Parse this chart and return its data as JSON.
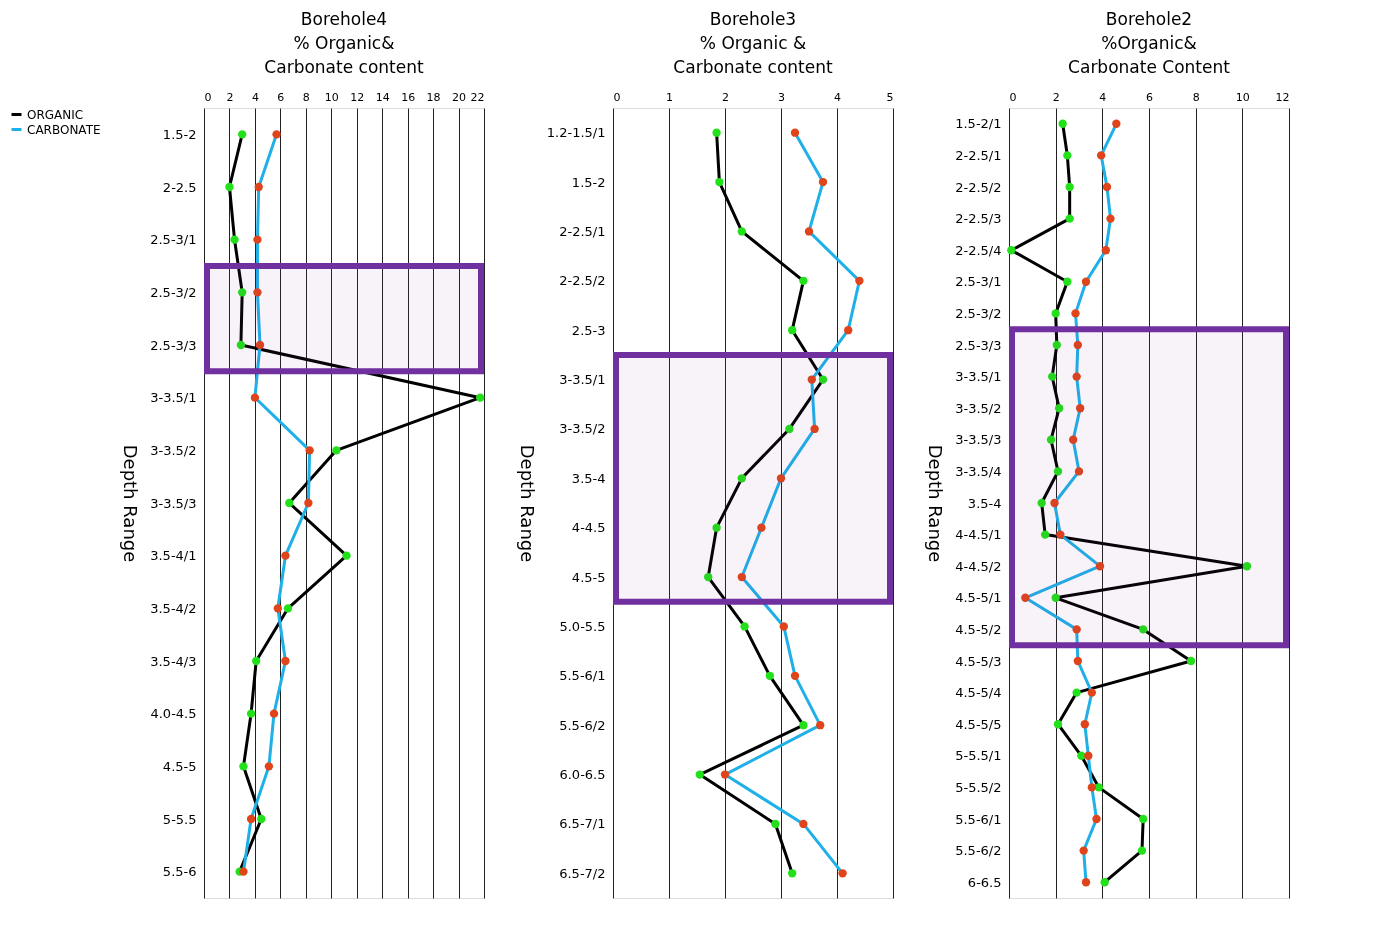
{
  "chart_data": [
    {
      "type": "line",
      "orientation": "horizontal",
      "title": "Borehole4\n% Organic&\nCarbonate content",
      "ylabel": "Depth Range",
      "categories": [
        "1.5-2",
        "2-2.5",
        "2.5-3/1",
        "2.5-3/2",
        "2.5-3/3",
        "3-3.5/1",
        "3-3.5/2",
        "3-3.5/3",
        "3.5-4/1",
        "3.5-4/2",
        "3.5-4/3",
        "4.0-4.5",
        "4.5-5",
        "5-5.5",
        "5.5-6"
      ],
      "series": [
        {
          "name": "ORGANIC",
          "color": "#000000",
          "colors": [
            "#22e01a",
            "#22e01a",
            "#22e01a",
            "#22e01a",
            "#22e01a",
            "#22e01a",
            "#22e01a",
            "#22e01a",
            "#22e01a",
            "#22e01a",
            "#22e01a",
            "#22e01a",
            "#22e01a",
            "#22e01a",
            "#22e01a"
          ],
          "values": [
            3.0,
            2.0,
            2.4,
            3.0,
            2.9,
            21.7,
            10.4,
            6.7,
            11.2,
            6.6,
            4.1,
            3.7,
            3.1,
            4.5,
            2.8
          ]
        },
        {
          "name": "CARBONATE",
          "color": "#1fb0e8",
          "colors": [
            "#e0441a",
            "#e0441a",
            "#e0441a",
            "#e0441a",
            "#e0441a",
            "#e0441a",
            "#e0441a",
            "#e0441a",
            "#e0441a",
            "#e0441a",
            "#e0441a",
            "#e0441a",
            "#e0441a",
            "#e0441a",
            "#e0441a"
          ],
          "values": [
            5.7,
            4.3,
            4.2,
            4.2,
            4.4,
            4.0,
            8.3,
            8.2,
            6.4,
            5.8,
            6.4,
            5.5,
            5.1,
            3.7,
            3.1
          ]
        }
      ],
      "xlim": [
        0,
        22
      ],
      "xticks": [
        0,
        2,
        4,
        6,
        8,
        10,
        12,
        14,
        16,
        18,
        20,
        22
      ],
      "grid": "x",
      "legend": "left",
      "marker": "circle",
      "line_style": "solid",
      "bands": [
        {
          "axis": "y",
          "from": "2.5-3/2",
          "to": "2.5-3/3",
          "color": "#7030a0"
        }
      ]
    },
    {
      "type": "line",
      "orientation": "horizontal",
      "title": "Borehole3\n% Organic &\nCarbonate content",
      "ylabel": "Depth Range",
      "categories": [
        "1.2-1.5/1",
        "1.5-2",
        "2-2.5/1",
        "2-2.5/2",
        "2.5-3",
        "3-3.5/1",
        "3-3.5/2",
        "3.5-4",
        "4-4.5",
        "4.5-5",
        "5.0-5.5",
        "5.5-6/1",
        "5.5-6/2",
        "6.0-6.5",
        "6.5-7/1",
        "6.5-7/2"
      ],
      "series": [
        {
          "name": "ORGANIC",
          "color": "#000000",
          "colors": [
            "#22e01a",
            "#22e01a",
            "#22e01a",
            "#22e01a",
            "#22e01a",
            "#22e01a",
            "#22e01a",
            "#22e01a",
            "#22e01a",
            "#22e01a",
            "#22e01a",
            "#22e01a",
            "#22e01a",
            "#22e01a",
            "#22e01a",
            "#22e01a"
          ],
          "values": [
            1.85,
            1.9,
            2.3,
            3.4,
            3.2,
            3.75,
            3.15,
            2.3,
            1.85,
            1.7,
            2.35,
            2.8,
            3.4,
            1.55,
            2.9,
            3.2
          ]
        },
        {
          "name": "CARBONATE",
          "color": "#1fb0e8",
          "colors": [
            "#e0441a",
            "#e0441a",
            "#e0441a",
            "#e0441a",
            "#e0441a",
            "#e0441a",
            "#e0441a",
            "#e0441a",
            "#e0441a",
            "#e0441a",
            "#e0441a",
            "#e0441a",
            "#e0441a",
            "#e0441a",
            "#e0441a",
            "#e0441a"
          ],
          "values": [
            3.25,
            3.75,
            3.5,
            4.4,
            4.2,
            3.55,
            3.6,
            3.0,
            2.65,
            2.3,
            3.05,
            3.25,
            3.7,
            2.0,
            3.4,
            4.1
          ]
        }
      ],
      "xlim": [
        0,
        5
      ],
      "xticks": [
        0,
        1,
        2,
        3,
        4,
        5
      ],
      "grid": "x",
      "legend": "left",
      "marker": "circle",
      "line_style": "solid",
      "bands": [
        {
          "axis": "y",
          "from": "3-3.5/1",
          "to": "4.5-5",
          "color": "#7030a0"
        }
      ]
    },
    {
      "type": "line",
      "orientation": "horizontal",
      "title": "Borehole2\n%Organic&\nCarbonate Content",
      "ylabel": "Depth Range",
      "categories": [
        "1.5-2/1",
        "2-2.5/1",
        "2-2.5/2",
        "2-2.5/3",
        "2-2.5/4",
        "2.5-3/1",
        "2.5-3/2",
        "2.5-3/3",
        "3-3.5/1",
        "3-3.5/2",
        "3-3.5/3",
        "3-3.5/4",
        "3.5-4",
        "4-4.5/1",
        "4-4.5/2",
        "4.5-5/1",
        "4.5-5/2",
        "4.5-5/3",
        "4.5-5/4",
        "4.5-5/5",
        "5-5.5/1",
        "5-5.5/2",
        "5.5-6/1",
        "5.5-6/2",
        "6-6.5"
      ],
      "series": [
        {
          "name": "ORGANIC",
          "color": "#000000",
          "colors": [
            "#22e01a",
            "#22e01a",
            "#22e01a",
            "#22e01a",
            "#22e01a",
            "#22e01a",
            "#22e01a",
            "#22e01a",
            "#22e01a",
            "#22e01a",
            "#22e01a",
            "#22e01a",
            "#22e01a",
            "#22e01a",
            "#22e01a",
            "#22e01a",
            "#22e01a",
            "#22e01a",
            "#22e01a",
            "#22e01a",
            "#22e01a",
            "#22e01a",
            "#22e01a",
            "#22e01a",
            "#22e01a"
          ],
          "values": [
            2.3,
            2.5,
            2.6,
            2.6,
            0.1,
            2.5,
            2.0,
            2.05,
            1.85,
            2.15,
            1.8,
            2.1,
            1.4,
            1.55,
            10.2,
            2.0,
            5.75,
            7.8,
            2.9,
            2.1,
            3.1,
            3.85,
            5.75,
            5.7,
            4.1
          ]
        },
        {
          "name": "CARBONATE",
          "color": "#1fb0e8",
          "colors": [
            "#e0441a",
            "#e0441a",
            "#e0441a",
            "#e0441a",
            "#e0441a",
            "#e0441a",
            "#e0441a",
            "#e0441a",
            "#e0441a",
            "#e0441a",
            "#e0441a",
            "#e0441a",
            "#e0441a",
            "#e0441a",
            "#e0441a",
            "#e0441a",
            "#e0441a",
            "#e0441a",
            "#e0441a",
            "#e0441a",
            "#e0441a",
            "#e0441a",
            "#e0441a",
            "#e0441a",
            "#e0441a"
          ],
          "values": [
            4.6,
            3.95,
            4.2,
            4.35,
            4.15,
            3.3,
            2.85,
            2.95,
            2.9,
            3.05,
            2.75,
            3.0,
            1.95,
            2.2,
            3.9,
            0.7,
            2.9,
            2.95,
            3.55,
            3.25,
            3.4,
            3.55,
            3.75,
            3.2,
            3.3
          ]
        }
      ],
      "xlim": [
        0,
        12
      ],
      "xticks": [
        0,
        2,
        4,
        6,
        8,
        10,
        12
      ],
      "grid": "x",
      "legend": "left",
      "marker": "circle",
      "line_style": "solid",
      "bands": [
        {
          "axis": "y",
          "from": "2.5-3/3",
          "to": "4.5-5/2",
          "color": "#7030a0"
        }
      ]
    }
  ]
}
